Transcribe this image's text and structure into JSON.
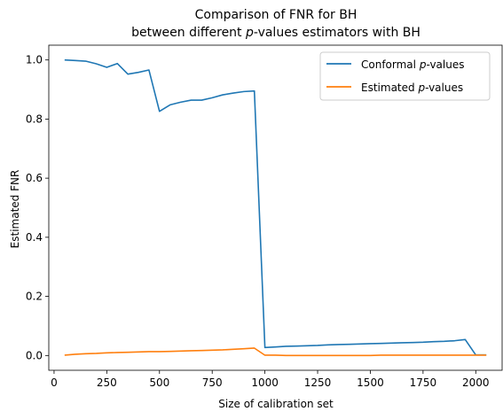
{
  "chart_data": {
    "type": "line",
    "title": {
      "line1": "Comparison of FNR for BH",
      "line2_pre": "between different ",
      "line2_italic": "p",
      "line2_post": "-values estimators with BH"
    },
    "xlabel": "Size of calibration set",
    "ylabel": "Estimated FNR",
    "xlim": [
      -25,
      2125
    ],
    "ylim": [
      -0.05,
      1.05
    ],
    "xticks": [
      0,
      250,
      500,
      750,
      1000,
      1250,
      1500,
      1750,
      2000
    ],
    "yticks": [
      0.0,
      0.2,
      0.4,
      0.6,
      0.8,
      1.0
    ],
    "legend_position": "top-right",
    "series": [
      {
        "name_pre": "Conformal ",
        "name_italic": "p",
        "name_post": "-values",
        "color": "#1f77b4",
        "x": [
          50,
          100,
          150,
          200,
          250,
          300,
          350,
          400,
          450,
          500,
          550,
          600,
          650,
          700,
          750,
          800,
          850,
          900,
          950,
          1000,
          1050,
          1100,
          1150,
          1200,
          1250,
          1300,
          1350,
          1400,
          1450,
          1500,
          1550,
          1600,
          1650,
          1700,
          1750,
          1800,
          1850,
          1900,
          1950,
          2000,
          2050
        ],
        "y": [
          1.0,
          0.998,
          0.996,
          0.987,
          0.975,
          0.988,
          0.952,
          0.958,
          0.966,
          0.826,
          0.848,
          0.857,
          0.864,
          0.864,
          0.872,
          0.882,
          0.888,
          0.893,
          0.895,
          0.027,
          0.029,
          0.031,
          0.032,
          0.033,
          0.034,
          0.036,
          0.037,
          0.038,
          0.039,
          0.04,
          0.041,
          0.042,
          0.043,
          0.044,
          0.045,
          0.047,
          0.048,
          0.05,
          0.054,
          0.002,
          0.002
        ]
      },
      {
        "name_pre": "Estimated ",
        "name_italic": "p",
        "name_post": "-values",
        "color": "#ff7f0e",
        "x": [
          50,
          100,
          150,
          200,
          250,
          300,
          350,
          400,
          450,
          500,
          550,
          600,
          650,
          700,
          750,
          800,
          850,
          900,
          950,
          1000,
          1050,
          1100,
          1150,
          1200,
          1250,
          1300,
          1350,
          1400,
          1450,
          1500,
          1550,
          1600,
          1650,
          1700,
          1750,
          1800,
          1850,
          1900,
          1950,
          2000,
          2050
        ],
        "y": [
          0.001,
          0.004,
          0.006,
          0.007,
          0.009,
          0.01,
          0.011,
          0.012,
          0.013,
          0.013,
          0.014,
          0.015,
          0.016,
          0.017,
          0.018,
          0.019,
          0.021,
          0.023,
          0.025,
          0.001,
          0.001,
          0.0,
          0.0,
          0.0,
          0.0,
          0.0,
          0.0,
          0.0,
          0.0,
          0.0,
          0.001,
          0.001,
          0.001,
          0.001,
          0.001,
          0.001,
          0.001,
          0.001,
          0.001,
          0.001,
          0.001
        ]
      }
    ]
  }
}
